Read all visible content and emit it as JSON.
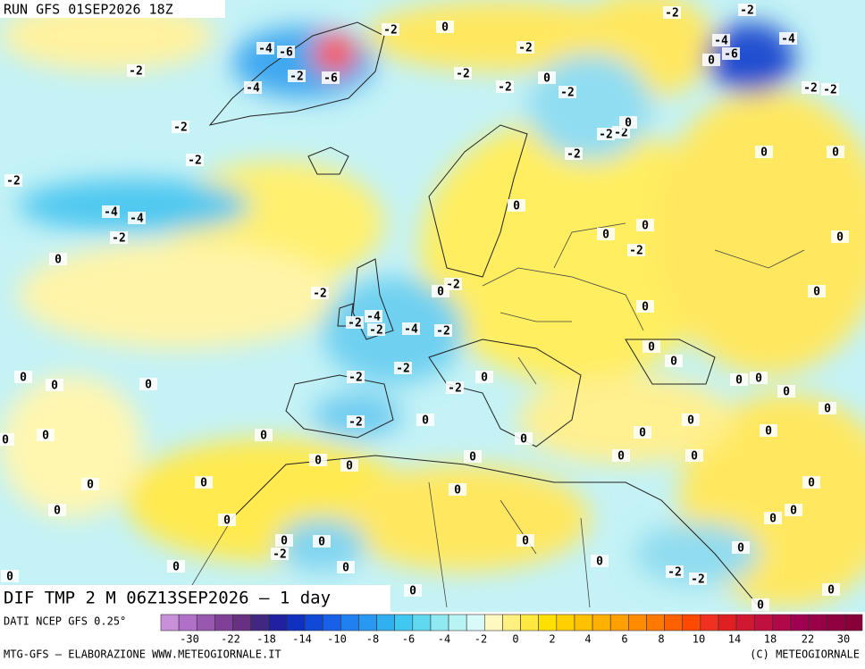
{
  "header": {
    "run": "RUN GFS 01SEP2026 18Z"
  },
  "map": {
    "title": "DIF TMP 2 M 06Z13SEP2026 — 1 day",
    "contour_labels": [
      -2,
      0,
      -2,
      -2,
      -2,
      -4,
      -6,
      -4,
      -4,
      -6,
      0,
      -2,
      -2,
      -6,
      -4,
      -2,
      -2,
      0,
      -2,
      -2,
      -2,
      -2,
      -2,
      -2,
      0,
      -2,
      -2,
      0,
      0,
      -2,
      0,
      -4,
      -4,
      -2,
      0,
      0,
      -2,
      0,
      0,
      -2,
      0,
      -2,
      0,
      0,
      -4,
      -2,
      -2,
      -4,
      -2,
      0,
      0,
      -2,
      -2,
      0,
      0,
      0,
      0,
      -2,
      0,
      0,
      0,
      -2,
      0,
      0,
      0,
      0,
      0,
      0,
      0,
      0,
      0,
      0,
      0,
      0,
      0,
      0,
      0,
      0,
      0,
      0,
      0,
      0,
      0,
      0,
      0,
      0,
      0,
      0,
      -2,
      0,
      0,
      0,
      -2,
      -2,
      0,
      0,
      0,
      0
    ]
  },
  "legend": {
    "source": "DATI NCEP GFS 0.25°",
    "palette": [
      "#c890d8",
      "#b070c8",
      "#9858b0",
      "#804098",
      "#683080",
      "#402880",
      "#2020a0",
      "#1030c0",
      "#1048d8",
      "#1860e8",
      "#2080f0",
      "#2898f0",
      "#30b0f0",
      "#40c8f0",
      "#60d8f0",
      "#90e8f0",
      "#b8f4f4",
      "#d8fafa",
      "#fff8c0",
      "#fff080",
      "#ffe840",
      "#ffe000",
      "#ffd000",
      "#ffc000",
      "#ffb000",
      "#ffa000",
      "#ff8c00",
      "#ff7800",
      "#ff6000",
      "#ff4800",
      "#f03020",
      "#e02020",
      "#d01830",
      "#c01040",
      "#b00848",
      "#a00050",
      "#980048",
      "#900040",
      "#880038"
    ],
    "ticks": [
      -30,
      -22,
      -18,
      -14,
      -10,
      -8,
      -6,
      -4,
      -2,
      0,
      2,
      4,
      6,
      8,
      10,
      14,
      18,
      22,
      30
    ]
  },
  "footer": {
    "left": "MTG-GFS — ELABORAZIONE WWW.METEOGIORNALE.IT",
    "right": "(C) METEOGIORNALE"
  }
}
